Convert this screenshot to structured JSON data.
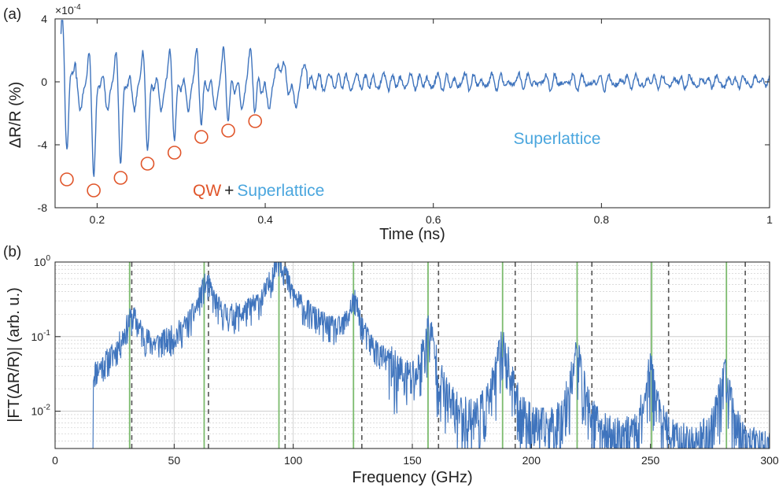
{
  "colors": {
    "trace": "#3f74bd",
    "qw_accent": "#e0552a",
    "superlattice_accent": "#4aa6de",
    "green_lines": "#7cbb6e",
    "dashed_lines": "#555555",
    "grid": "#c8c8c8",
    "axis": "#222222",
    "bar": "#888888"
  },
  "chart_data": [
    {
      "panel_label": "(a)",
      "type": "line",
      "xlabel": "Time (ns)",
      "ylabel": "ΔR/R (%)",
      "y_exponent": "x10-4",
      "xlim": [
        0.15,
        1.0
      ],
      "ylim": [
        -8,
        4
      ],
      "xticks": [
        0.2,
        0.4,
        0.6,
        0.8,
        1
      ],
      "xtick_labels": [
        "0.2",
        "0.4",
        "0.6",
        "0.8",
        "1"
      ],
      "yticks": [
        4,
        0,
        -4,
        -8
      ],
      "ytick_labels": [
        "4",
        "0",
        "-4",
        "-8"
      ],
      "grid": false,
      "dips": [
        {
          "t": 0.164,
          "v": -6.2
        },
        {
          "t": 0.196,
          "v": -6.9
        },
        {
          "t": 0.228,
          "v": -6.1
        },
        {
          "t": 0.26,
          "v": -5.2
        },
        {
          "t": 0.292,
          "v": -4.5
        },
        {
          "t": 0.324,
          "v": -3.5
        },
        {
          "t": 0.356,
          "v": -3.1
        },
        {
          "t": 0.388,
          "v": -2.5
        }
      ],
      "annotations": {
        "qw": "QW",
        "plus": "+",
        "superlattice_bottom": "Superlattice",
        "superlattice_right": "Superlattice"
      },
      "bars": [
        {
          "x_start": 0.16,
          "x_end": 0.45,
          "y": -7.6,
          "fade": "right"
        },
        {
          "x_start": 0.52,
          "x_end": 1.0,
          "y": -2.7,
          "fade": "left"
        }
      ]
    },
    {
      "panel_label": "(b)",
      "type": "line",
      "xlabel": "Frequency (GHz)",
      "ylabel": "|FT(ΔR/R)| (arb. u.)",
      "xlim": [
        0,
        300
      ],
      "ylim_log10": [
        -2.5,
        0
      ],
      "xticks": [
        0,
        50,
        100,
        150,
        200,
        250,
        300
      ],
      "xtick_labels": [
        "0",
        "50",
        "100",
        "150",
        "200",
        "250",
        "300"
      ],
      "ytick_labels": [
        "10-2",
        "10-1",
        "100"
      ],
      "grid": true,
      "scale": "log",
      "green_lines_ghz": [
        31.3,
        62.6,
        94.0,
        125.3,
        156.6,
        187.9,
        219.2,
        250.5,
        281.9
      ],
      "dashed_lines_ghz": [
        32.2,
        64.4,
        96.6,
        128.8,
        161.0,
        193.2,
        225.4,
        257.6,
        289.8
      ],
      "peaks": [
        {
          "f": 32.5,
          "amp": 0.13,
          "width": 3.5
        },
        {
          "f": 63.5,
          "amp": 0.38,
          "width": 3.2
        },
        {
          "f": 94.0,
          "amp": 0.92,
          "width": 2.8
        },
        {
          "f": 125.5,
          "amp": 0.22,
          "width": 2.4
        },
        {
          "f": 157.0,
          "amp": 0.11,
          "width": 2.2
        },
        {
          "f": 188.0,
          "amp": 0.07,
          "width": 2.4
        },
        {
          "f": 219.0,
          "amp": 0.05,
          "width": 2.2
        },
        {
          "f": 250.0,
          "amp": 0.03,
          "width": 2.0
        },
        {
          "f": 281.0,
          "amp": 0.028,
          "width": 2.0
        }
      ]
    }
  ]
}
